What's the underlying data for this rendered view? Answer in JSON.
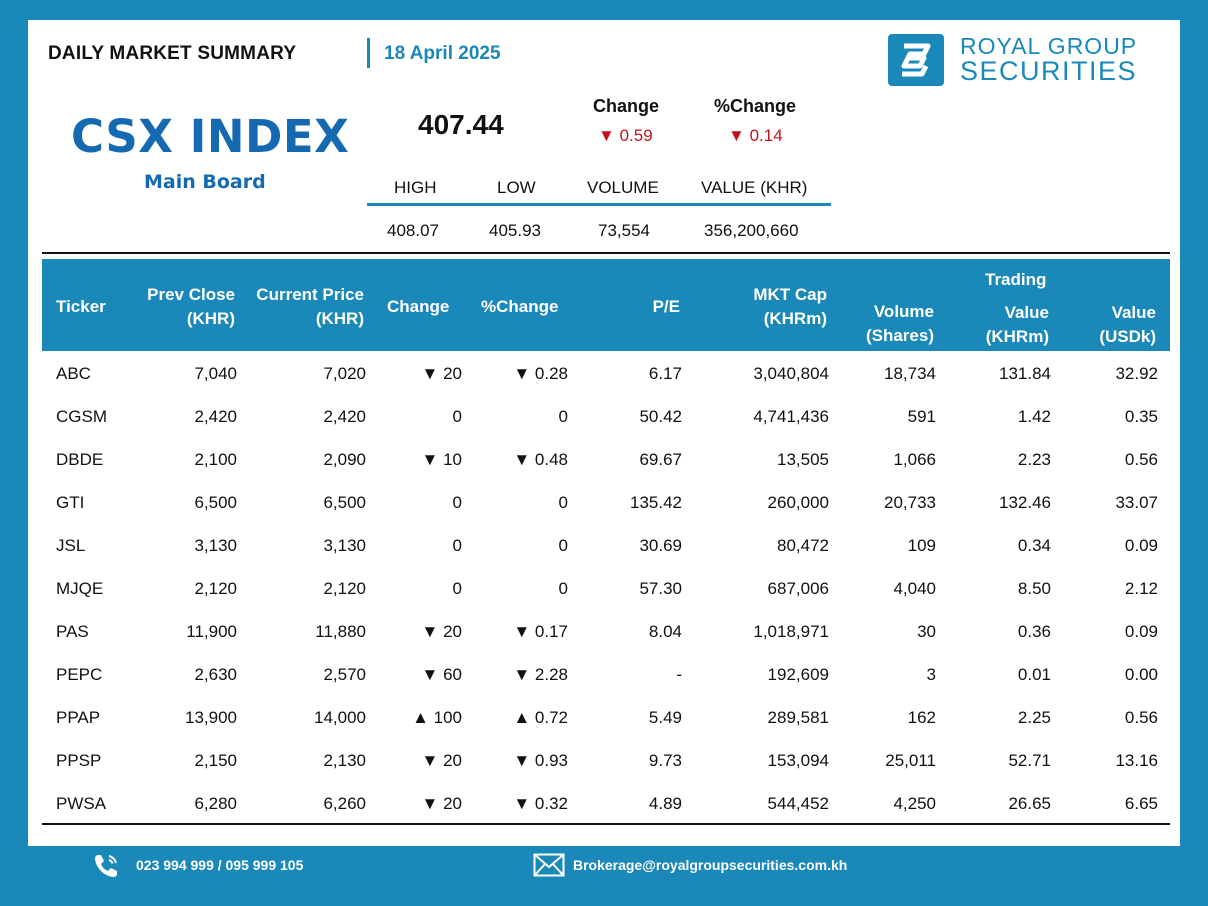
{
  "header": {
    "title": "DAILY MARKET SUMMARY",
    "date": "18 April 2025",
    "logo_line1": "ROYAL GROUP",
    "logo_line2": "SECURITIES"
  },
  "index": {
    "name": "CSX INDEX",
    "board": "Main Board",
    "value": "407.44",
    "change_label": "Change",
    "change_value": "0.59",
    "pct_change_label": "%Change",
    "pct_change_value": "0.14",
    "direction": "down"
  },
  "stats": {
    "headers": [
      "HIGH",
      "LOW",
      "VOLUME",
      "VALUE (KHR)"
    ],
    "values": [
      "408.07",
      "405.93",
      "73,554",
      "356,200,660"
    ]
  },
  "table": {
    "trading_label": "Trading",
    "headers": [
      {
        "l1": "",
        "l2": "Ticker"
      },
      {
        "l1": "Prev Close",
        "l2": "(KHR)"
      },
      {
        "l1": "Current Price",
        "l2": "(KHR)"
      },
      {
        "l1": "",
        "l2": "Change"
      },
      {
        "l1": "",
        "l2": "%Change"
      },
      {
        "l1": "",
        "l2": "P/E"
      },
      {
        "l1": "MKT Cap",
        "l2": "(KHRm)"
      },
      {
        "l1": "Volume",
        "l2": "(Shares)"
      },
      {
        "l1": "Value",
        "l2": "(KHRm)"
      },
      {
        "l1": "Value",
        "l2": "(USDk)"
      }
    ],
    "rows": [
      {
        "ticker": "ABC",
        "prev": "7,040",
        "cur": "7,020",
        "chg": "20",
        "pct": "0.28",
        "dir": "down",
        "pe": "6.17",
        "mcap": "3,040,804",
        "vol": "18,734",
        "khrm": "131.84",
        "usdk": "32.92"
      },
      {
        "ticker": "CGSM",
        "prev": "2,420",
        "cur": "2,420",
        "chg": "0",
        "pct": "0",
        "dir": "flat",
        "pe": "50.42",
        "mcap": "4,741,436",
        "vol": "591",
        "khrm": "1.42",
        "usdk": "0.35"
      },
      {
        "ticker": "DBDE",
        "prev": "2,100",
        "cur": "2,090",
        "chg": "10",
        "pct": "0.48",
        "dir": "down",
        "pe": "69.67",
        "mcap": "13,505",
        "vol": "1,066",
        "khrm": "2.23",
        "usdk": "0.56"
      },
      {
        "ticker": "GTI",
        "prev": "6,500",
        "cur": "6,500",
        "chg": "0",
        "pct": "0",
        "dir": "flat",
        "pe": "135.42",
        "mcap": "260,000",
        "vol": "20,733",
        "khrm": "132.46",
        "usdk": "33.07"
      },
      {
        "ticker": "JSL",
        "prev": "3,130",
        "cur": "3,130",
        "chg": "0",
        "pct": "0",
        "dir": "flat",
        "pe": "30.69",
        "mcap": "80,472",
        "vol": "109",
        "khrm": "0.34",
        "usdk": "0.09"
      },
      {
        "ticker": "MJQE",
        "prev": "2,120",
        "cur": "2,120",
        "chg": "0",
        "pct": "0",
        "dir": "flat",
        "pe": "57.30",
        "mcap": "687,006",
        "vol": "4,040",
        "khrm": "8.50",
        "usdk": "2.12"
      },
      {
        "ticker": "PAS",
        "prev": "11,900",
        "cur": "11,880",
        "chg": "20",
        "pct": "0.17",
        "dir": "down",
        "pe": "8.04",
        "mcap": "1,018,971",
        "vol": "30",
        "khrm": "0.36",
        "usdk": "0.09"
      },
      {
        "ticker": "PEPC",
        "prev": "2,630",
        "cur": "2,570",
        "chg": "60",
        "pct": "2.28",
        "dir": "down",
        "pe": "-",
        "mcap": "192,609",
        "vol": "3",
        "khrm": "0.01",
        "usdk": "0.00"
      },
      {
        "ticker": "PPAP",
        "prev": "13,900",
        "cur": "14,000",
        "chg": "100",
        "pct": "0.72",
        "dir": "up",
        "pe": "5.49",
        "mcap": "289,581",
        "vol": "162",
        "khrm": "2.25",
        "usdk": "0.56"
      },
      {
        "ticker": "PPSP",
        "prev": "2,150",
        "cur": "2,130",
        "chg": "20",
        "pct": "0.93",
        "dir": "down",
        "pe": "9.73",
        "mcap": "153,094",
        "vol": "25,011",
        "khrm": "52.71",
        "usdk": "13.16"
      },
      {
        "ticker": "PWSA",
        "prev": "6,280",
        "cur": "6,260",
        "chg": "20",
        "pct": "0.32",
        "dir": "down",
        "pe": "4.89",
        "mcap": "544,452",
        "vol": "4,250",
        "khrm": "26.65",
        "usdk": "6.65"
      }
    ]
  },
  "footer": {
    "phone": "023 994 999 / 095 999 105",
    "email": "Brokerage@royalgroupsecurities.com.kh",
    "phone_icon": "phone-icon",
    "email_icon": "mail-icon"
  },
  "colors": {
    "brand_blue": "#1a88b8",
    "title_blue": "#1569b0",
    "down_red": "#c0141c",
    "up_green": "#2e7d2e"
  }
}
